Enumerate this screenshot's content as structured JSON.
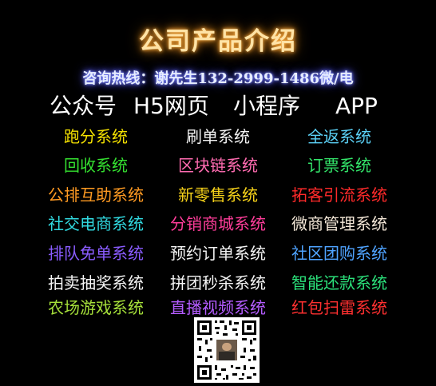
{
  "title": "公司产品介绍",
  "hotline": "咨询热线：谢先生132-2999-1486微/电",
  "products": [
    "公众号",
    "H5网页",
    "小程序",
    "APP"
  ],
  "rows": [
    [
      {
        "text": "跑分系统",
        "color": "#F3E000"
      },
      {
        "text": "刷单系统",
        "color": "#F2F2F2"
      },
      {
        "text": "全返系统",
        "color": "#5BD0F5"
      }
    ],
    [
      {
        "text": "回收系统",
        "color": "#34E030"
      },
      {
        "text": "区块链系统",
        "color": "#FF6BB0"
      },
      {
        "text": "订票系统",
        "color": "#33E56A"
      }
    ],
    [
      {
        "text": "公排互助系统",
        "color": "#FF9A22"
      },
      {
        "text": "新零售系统",
        "color": "#F7D21A"
      },
      {
        "text": "拓客引流系统",
        "color": "#FF2A2A"
      }
    ],
    [
      {
        "text": "社交电商系统",
        "color": "#31D9E0"
      },
      {
        "text": "分销商城系统",
        "color": "#FF3D9A"
      },
      {
        "text": "微商管理系统",
        "color": "#F2E6D6"
      }
    ],
    [
      {
        "text": "排队免单系统",
        "color": "#8A5CFF"
      },
      {
        "text": "预约订单系统",
        "color": "#F2F2F2"
      },
      {
        "text": "社区团购系统",
        "color": "#4FA3FF"
      }
    ],
    [
      {
        "text": "拍卖抽奖系统",
        "color": "#F5F5F5"
      },
      {
        "text": "拼团秒杀系统",
        "color": "#F5F5F5"
      },
      {
        "text": "智能还款系统",
        "color": "#2BE07A"
      }
    ],
    [
      {
        "text": "农场游戏系统",
        "color": "#A6E03A"
      },
      {
        "text": "直播视频系统",
        "color": "#B45CFF"
      },
      {
        "text": "红包扫雷系统",
        "color": "#FF3030"
      }
    ]
  ]
}
